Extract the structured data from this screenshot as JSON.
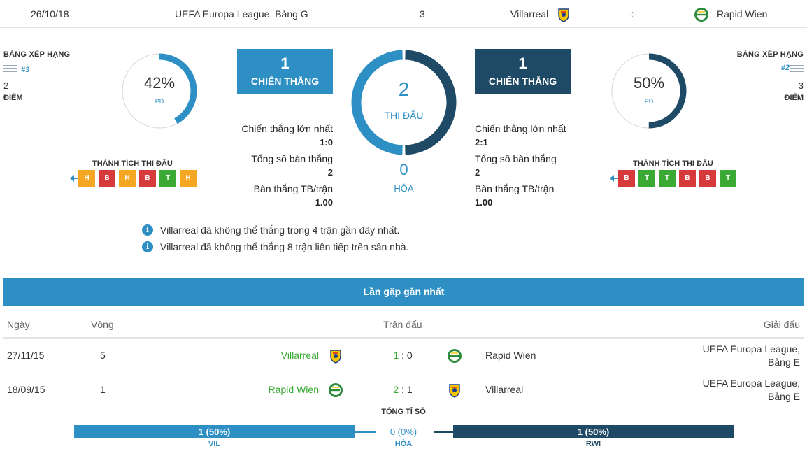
{
  "colors": {
    "accent": "#2d8fc4",
    "dark": "#1f4a66",
    "win": "#3aaa35",
    "loss": "#d63a3a",
    "draw": "#f5a623"
  },
  "match": {
    "date": "26/10/18",
    "competition": "UEFA Europa League, Bảng G",
    "round": "3",
    "home": "Villarreal",
    "score": "-:-",
    "away": "Rapid Wien"
  },
  "home": {
    "rank_label": "BẢNG XẾP HẠNG",
    "rank": "#3",
    "points": "2",
    "points_label": "ĐIỂM",
    "percent": "42%",
    "percent_value": 0.42,
    "percent_label": "PĐ",
    "form_title": "THÀNH TÍCH THI ĐẤU",
    "form": [
      "H",
      "B",
      "H",
      "B",
      "T",
      "H"
    ],
    "wins": "1",
    "wins_label": "CHIẾN THẮNG",
    "stats": [
      {
        "label": "Chiến thắng lớn nhất",
        "value": "1:0"
      },
      {
        "label": "Tổng số bàn thắng",
        "value": "2"
      },
      {
        "label": "Bàn thắng TB/trận",
        "value": "1.00"
      }
    ]
  },
  "away": {
    "rank_label": "BẢNG XẾP HẠNG",
    "rank": "#2",
    "points": "3",
    "points_label": "ĐIỂM",
    "percent": "50%",
    "percent_value": 0.5,
    "percent_label": "PĐ",
    "form_title": "THÀNH TÍCH THI ĐẤU",
    "form": [
      "B",
      "T",
      "T",
      "B",
      "B",
      "T"
    ],
    "wins": "1",
    "wins_label": "CHIẾN THẮNG",
    "stats": [
      {
        "label": "Chiến thắng lớn nhất",
        "value": "2:1"
      },
      {
        "label": "Tổng số bàn thắng",
        "value": "2"
      },
      {
        "label": "Bàn thắng TB/trận",
        "value": "1.00"
      }
    ]
  },
  "center": {
    "played": "2",
    "played_label": "THI ĐẤU",
    "home_share": 0.5,
    "draws": "0",
    "draws_label": "HÒA"
  },
  "info": [
    "Villarreal đã không thể thắng trong 4 trận gần đây nhất.",
    "Villarreal đã không thể thắng 8 trận liên tiếp trên sân nhà."
  ],
  "recent": {
    "title": "Lần gặp gần nhất",
    "headers": {
      "date": "Ngày",
      "round": "Vòng",
      "match": "Trận đấu",
      "competition": "Giải đấu"
    },
    "rows": [
      {
        "date": "27/11/15",
        "round": "5",
        "home": "Villarreal",
        "home_goals": "1",
        "sep": ":",
        "away_goals": "0",
        "away": "Rapid Wien",
        "competition_line1": "UEFA Europa League,",
        "competition_line2": "Bảng E"
      },
      {
        "date": "18/09/15",
        "round": "1",
        "home": "Rapid Wien",
        "home_goals": "2",
        "sep": ":",
        "away_goals": "1",
        "away": "Villarreal",
        "competition_line1": "UEFA Europa League,",
        "competition_line2": "Bảng E"
      }
    ]
  },
  "totals": {
    "title": "TỔNG TỈ SỐ",
    "home_value": "1 (50%)",
    "home_label": "VIL",
    "draw_value": "0 (0%)",
    "draw_label": "HÒA",
    "away_value": "1 (50%)",
    "away_label": "RWI"
  }
}
